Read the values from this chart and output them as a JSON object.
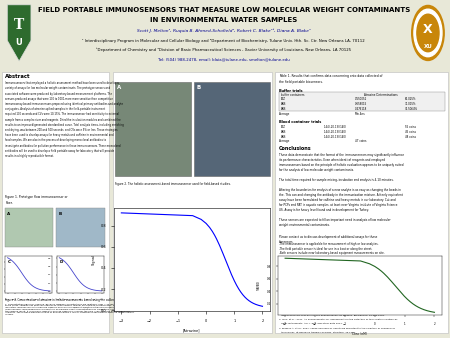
{
  "bg_color": "#e8e8d8",
  "header_bg": "#ffffff",
  "title_line1": "FIELD PORTABLE IMMUNOSENSORS THAT MEASURE LOW MOLECULAR WEIGHT CONTAMINANTS",
  "title_line2": "IN ENVIRONMENTAL WATER SAMPLES",
  "authors": "Scott J. Melton¹, Ruquia B. Ahmed-Schofield², Robert C. Blake²³, Diana A. Blake¹",
  "affil1": "¹ Interdisciplinary Program in Molecular and Cellular Biology and ²Department of Biochemistry, Tulane Univ. Hth. Sc. Ctr. New Orleans LA, 70112",
  "affil2": "³Department of Chemistry and ⁴Division of Basic Pharmaceutical Sciences , Xavier University of Louisiana, New Orleans, LA 70125",
  "contact": "Tel: (504) 988-2478, email: blaia@tulane.edu, smelton@tulane.edu",
  "left_logo_color": "#2e6b2e",
  "right_logo_color": "#c8860a",
  "body_bg": "#e8e8d8"
}
